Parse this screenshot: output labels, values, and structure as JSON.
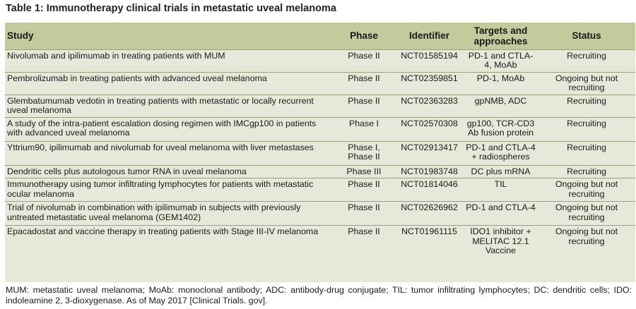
{
  "title": "Table 1: Immunotherapy clinical trials in metastatic uveal melanoma",
  "table": {
    "headers": {
      "study": "Study",
      "phase": "Phase",
      "identifier": "Identifier",
      "targets": "Targets and approaches",
      "status": "Status"
    },
    "rows": [
      {
        "study": "Nivolumab and ipilimumab in treating patients with MUM",
        "phase": "Phase II",
        "identifier": "NCT01585194",
        "targets": "PD-1 and CTLA-4, MoAb",
        "status": "Recruiting"
      },
      {
        "study": "Pembrolizumab in treating patients with advanced uveal melanoma",
        "phase": "Phase II",
        "identifier": "NCT02359851",
        "targets": "PD-1, MoAb",
        "status": "Ongoing but not recruiting"
      },
      {
        "study": "Glembatumumab vedotin in treating patients with metastatic or locally recurrent uveal melanoma",
        "phase": "Phase II",
        "identifier": "NCT02363283",
        "targets": "gpNMB, ADC",
        "status": "Recruiting"
      },
      {
        "study": "A study of the intra-patient escalation dosing regimen with IMCgp100 in patients with advanced uveal melanoma",
        "phase": "Phase I",
        "identifier": "NCT02570308",
        "targets": "gp100, TCR-CD3 Ab fusion protein",
        "status": "Recruiting"
      },
      {
        "study": "Yttrium90, ipilimumab and nivolumab for uveal melanoma with liver metastases",
        "phase": "Phase I, Phase II",
        "identifier": "NCT02913417",
        "targets": "PD-1 and CTLA-4 + radiospheres",
        "status": "Recruiting"
      },
      {
        "study": "Dendritic cells plus autologous tumor RNA in uveal melanoma",
        "phase": "Phase III",
        "identifier": "NCT01983748",
        "targets": "DC plus mRNA",
        "status": "Recruiting"
      },
      {
        "study": "Immunotherapy using tumor infiltrating lymphocytes for patients with metastatic ocular melanoma",
        "phase": "Phase II",
        "identifier": "NCT01814046",
        "targets": "TIL",
        "status": "Ongoing but not recruiting"
      },
      {
        "study": "Trial of nivolumab in combination with ipilimumab in subjects with previously untreated metastatic uveal melanoma (GEM1402)",
        "phase": "Phase II",
        "identifier": "NCT02626962",
        "targets": "PD-1 and CTLA-4",
        "status": "Ongoing but not recruiting"
      },
      {
        "study": "Epacadostat and vaccine therapy in treating patients with Stage III-IV melanoma",
        "phase": "Phase II",
        "identifier": "NCT01961115",
        "targets": "IDO1 inhibitor + MELITAC 12.1 Vaccine",
        "status": "Ongoing but not recruiting"
      }
    ]
  },
  "footnote": "MUM: metastatic uveal melanoma; MoAb: monoclonal antibody; ADC: antibody-drug conjugate; TIL: tumor infiltrating lymphocytes; DC: dendritic cells; IDO: indoleamine 2, 3-dioxygenase. As of May 2017 [Clinical Trials. gov].",
  "colors": {
    "header_bg": "#c3ca9c",
    "body_bg": "#e6e8d9",
    "rule": "#9aa07c"
  }
}
